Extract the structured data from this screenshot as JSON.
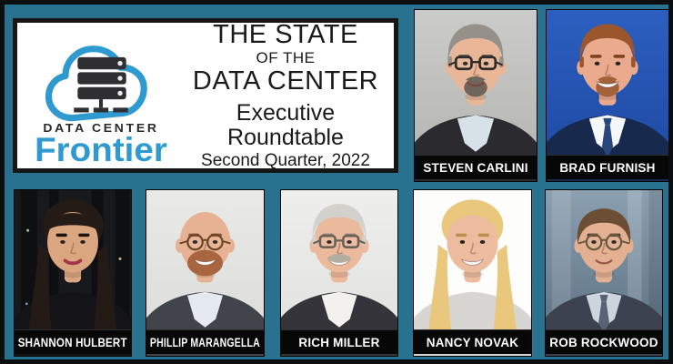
{
  "theme": {
    "background": "#28718f",
    "outer_border": "#0c0d0e",
    "panel_bg": "#ffffff",
    "panel_border": "#161616",
    "nameplate_bg": "#070707",
    "nameplate_text": "#ffffff",
    "title_color": "#1a1a1a"
  },
  "branding": {
    "logo": {
      "brand_top": "DATA CENTER",
      "brand_bottom": "Frontier",
      "cloud_color": "#2f9ad0",
      "server_color": "#2f2f31",
      "text_color": "#2b2b2d"
    },
    "title": {
      "line1": "THE STATE",
      "line2": "OF THE",
      "line3": "DATA CENTER",
      "line4": "Executive Roundtable",
      "line5": "Second Quarter, 2022"
    }
  },
  "participants": [
    {
      "name": "STEVEN CARLINI",
      "avatar": {
        "bg": "#cbcbc9",
        "bg2": "#b2b2af",
        "bgDetail": "none",
        "skin": "#e9b697",
        "hairStyle": "short",
        "hairColor": "#95908a",
        "brow": "#55504a",
        "glasses": "rect",
        "glassesColor": "#2e2b28",
        "facialHair": "goatee",
        "facialHairColor": "#6e655c",
        "suit": "#2b2a2f",
        "shirt": "#d7e2e8",
        "tie": "",
        "smile": "soft",
        "lipstick": ""
      }
    },
    {
      "name": "BRAD FURNISH",
      "avatar": {
        "bg": "#2c5fc0",
        "bg2": "#1c47a0",
        "bgDetail": "none",
        "skin": "#eaaa8d",
        "hairStyle": "short",
        "hairColor": "#9c562c",
        "brow": "#7d441f",
        "glasses": "none",
        "glassesColor": "",
        "facialHair": "goatee",
        "facialHairColor": "#a3623a",
        "suit": "#172a4d",
        "shirt": "#f5f7f9",
        "tie": "#27467b",
        "smile": "teeth",
        "lipstick": ""
      }
    },
    {
      "name": "SHANNON HULBERT",
      "avatar": {
        "bg": "#17191d",
        "bg2": "",
        "bgDetail": "rack",
        "skin": "#d9a67f",
        "hairStyle": "bangs",
        "hairColor": "#241b17",
        "brow": "#1c1310",
        "glasses": "none",
        "glassesColor": "",
        "facialHair": "none",
        "facialHairColor": "",
        "suit": "#141318",
        "shirt": "#141318",
        "tie": "",
        "smile": "soft",
        "lipstick": "#a43646"
      }
    },
    {
      "name": "PHILLIP MARANGELLA",
      "avatar": {
        "bg": "#e9e9e7",
        "bg2": "#dbdbd9",
        "bgDetail": "none",
        "skin": "#e7b294",
        "hairStyle": "bald",
        "hairColor": "#b5825d",
        "brow": "#8a5a38",
        "glasses": "round",
        "glassesColor": "#6b4526",
        "facialHair": "full",
        "facialHairColor": "#a9653f",
        "suit": "#41444b",
        "shirt": "#e5eaf2",
        "tie": "",
        "smile": "teeth",
        "lipstick": ""
      }
    },
    {
      "name": "RICH MILLER",
      "avatar": {
        "bg": "#eeeeec",
        "bg2": "#e0e0de",
        "bgDetail": "none",
        "skin": "#ebb99c",
        "hairStyle": "short",
        "hairColor": "#d3d1cb",
        "brow": "#8a8078",
        "glasses": "rect",
        "glassesColor": "#6a6258",
        "facialHair": "mustache",
        "facialHairColor": "#b4aba1",
        "suit": "#35343a",
        "shirt": "#f3f1ed",
        "tie": "",
        "smile": "teeth",
        "lipstick": ""
      }
    },
    {
      "name": "NANCY NOVAK",
      "avatar": {
        "bg": "#fdfdfc",
        "bg2": "",
        "bgDetail": "none",
        "skin": "#edbb9e",
        "hairStyle": "long",
        "hairColor": "#e9c87d",
        "brow": "#b98f4e",
        "glasses": "none",
        "glassesColor": "",
        "facialHair": "none",
        "facialHairColor": "",
        "suit": "#d8d6d2",
        "shirt": "#d8d6d2",
        "tie": "",
        "smile": "teeth",
        "lipstick": ""
      }
    },
    {
      "name": "ROB ROCKWOOD",
      "avatar": {
        "bg": "#8ba0b0",
        "bg2": "#566b7d",
        "bgDetail": "bands",
        "skin": "#e3b092",
        "hairStyle": "receding",
        "hairColor": "#6b4e33",
        "brow": "#5a4027",
        "glasses": "round",
        "glassesColor": "#68583f",
        "facialHair": "none",
        "facialHairColor": "",
        "suit": "#3c4250",
        "shirt": "#ccd4dc",
        "tie": "#596273",
        "smile": "soft",
        "lipstick": ""
      }
    }
  ]
}
